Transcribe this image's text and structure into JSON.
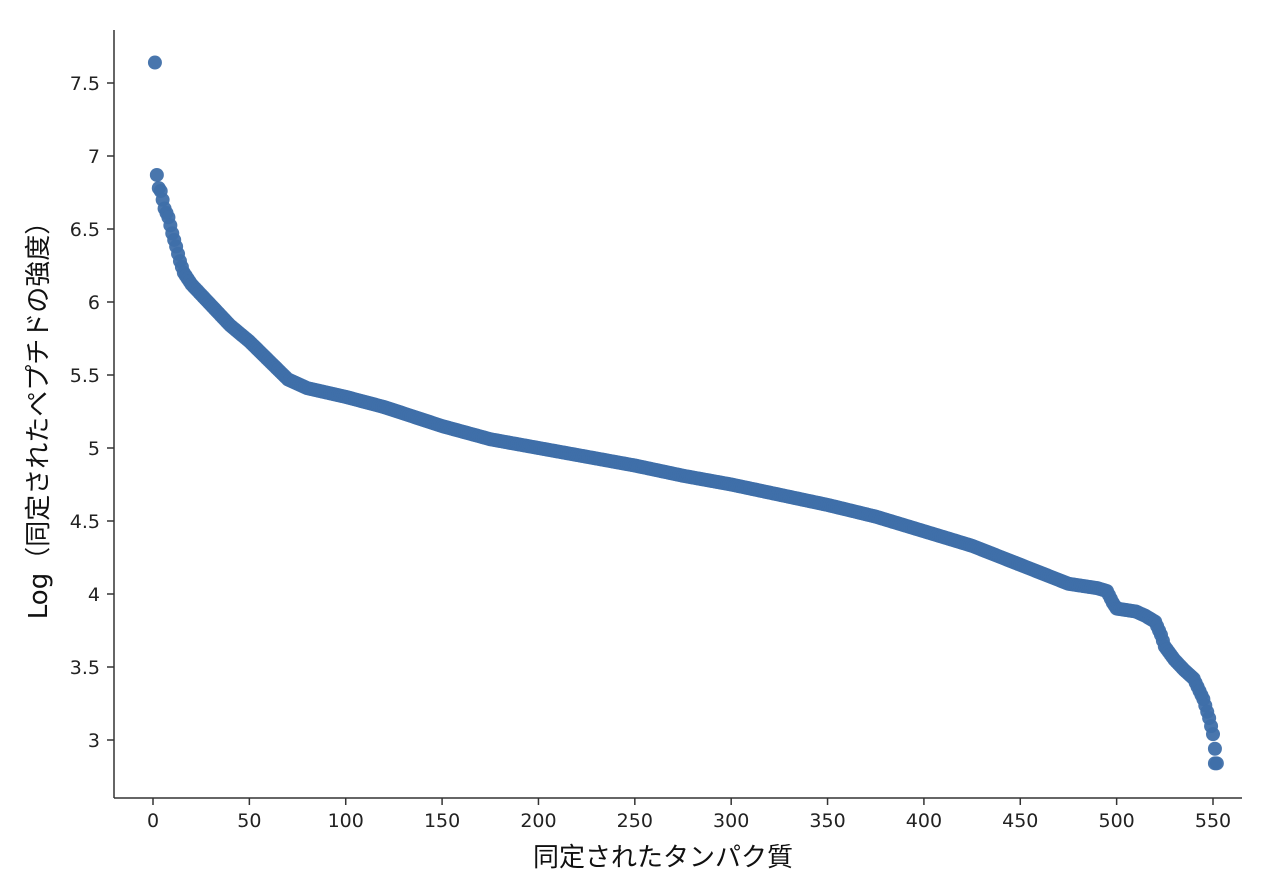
{
  "chart_data": {
    "type": "scatter",
    "title": "",
    "xlabel": "同定されたタンパク質",
    "ylabel": "Log（同定されたペプチドの強度）",
    "xlim": [
      -10,
      555
    ],
    "ylim": [
      2.7,
      7.9
    ],
    "x_ticks": [
      0,
      50,
      100,
      150,
      200,
      250,
      300,
      350,
      400,
      450,
      500,
      550
    ],
    "y_ticks": [
      3,
      3.5,
      4,
      4.5,
      5,
      5.5,
      6,
      6.5,
      7,
      7.5
    ],
    "x_tick_labels": [
      "0",
      "50",
      "100",
      "150",
      "200",
      "250",
      "300",
      "350",
      "400",
      "450",
      "500",
      "550"
    ],
    "y_tick_labels": [
      "3",
      "3.5",
      "4",
      "4.5",
      "5",
      "5.5",
      "6",
      "6.5",
      "7",
      "7.5"
    ],
    "grid": false,
    "legend": "none",
    "point_color": "#3f6fa9",
    "curve_knots": {
      "x": [
        1,
        2,
        3,
        4,
        6,
        8,
        10,
        12,
        14,
        16,
        20,
        25,
        30,
        40,
        50,
        60,
        70,
        80,
        100,
        120,
        150,
        175,
        200,
        225,
        250,
        275,
        300,
        325,
        350,
        375,
        400,
        425,
        450,
        475,
        490,
        495,
        498,
        500,
        510,
        515,
        520,
        523,
        525,
        530,
        535,
        540,
        545,
        548,
        550,
        552
      ],
      "y": [
        7.64,
        6.87,
        6.78,
        6.76,
        6.64,
        6.58,
        6.47,
        6.38,
        6.28,
        6.2,
        6.12,
        6.05,
        5.98,
        5.84,
        5.73,
        5.6,
        5.47,
        5.41,
        5.35,
        5.28,
        5.15,
        5.06,
        5.0,
        4.94,
        4.88,
        4.81,
        4.75,
        4.68,
        4.61,
        4.53,
        4.43,
        4.33,
        4.2,
        4.07,
        4.04,
        4.02,
        3.94,
        3.9,
        3.88,
        3.85,
        3.81,
        3.72,
        3.64,
        3.55,
        3.48,
        3.42,
        3.28,
        3.15,
        3.04,
        2.84
      ]
    }
  }
}
